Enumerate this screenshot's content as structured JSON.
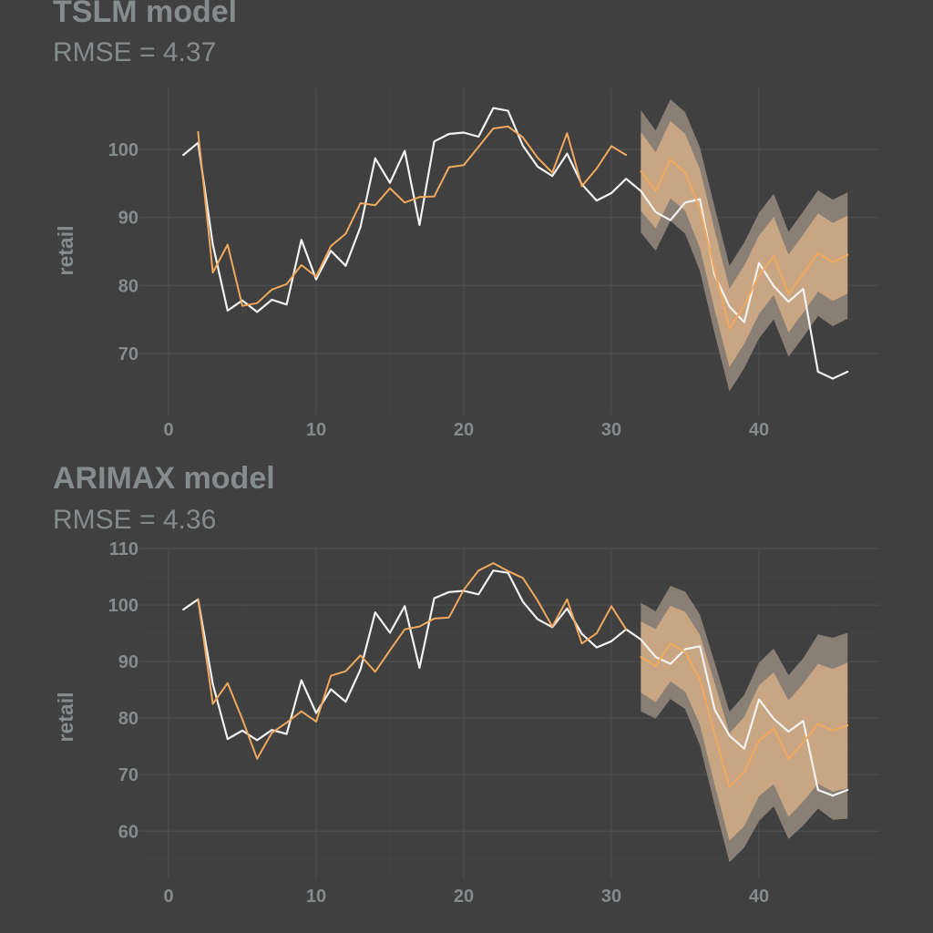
{
  "colors": {
    "background": "#404040",
    "text": "#868b8e",
    "grid": "#4a4c4d",
    "actual": "#f2f2f2",
    "forecast": "#f0a95d",
    "band80": "#c9a683",
    "band95": "#8a7f75"
  },
  "chart_data": [
    {
      "type": "line",
      "title": "TSLM model",
      "subtitle": "RMSE = 4.37",
      "xlabel": "",
      "ylabel": "retail",
      "xlim": [
        0,
        48
      ],
      "ylim": [
        61,
        109
      ],
      "x_ticks": [
        0,
        10,
        20,
        30,
        40
      ],
      "y_ticks": [
        70,
        80,
        90,
        100
      ],
      "grid": true,
      "legend": "none",
      "series": [
        {
          "role": "actual",
          "x": [
            1,
            2,
            3,
            4,
            5,
            6,
            7,
            8,
            9,
            10,
            11,
            12,
            13,
            14,
            15,
            16,
            17,
            18,
            19,
            20,
            21,
            22,
            23,
            24,
            25,
            26,
            27,
            28,
            29,
            30,
            31,
            32,
            33,
            34,
            35,
            36,
            37,
            38,
            39,
            40,
            41,
            42,
            43,
            44,
            45,
            46
          ],
          "y": [
            99.2,
            101.0,
            86.0,
            76.3,
            77.8,
            76.1,
            77.9,
            77.2,
            86.7,
            80.9,
            85.1,
            82.9,
            88.6,
            98.7,
            95.1,
            99.8,
            88.9,
            101.2,
            102.3,
            102.5,
            101.9,
            106.1,
            105.7,
            100.6,
            97.5,
            96.1,
            99.4,
            94.9,
            92.5,
            93.6,
            95.7,
            93.9,
            90.8,
            89.6,
            92.2,
            92.7,
            81.5,
            76.9,
            74.6,
            83.3,
            79.9,
            77.6,
            79.5,
            67.3,
            66.3,
            67.3
          ]
        },
        {
          "role": "fitted",
          "x": [
            2,
            3,
            4,
            5,
            6,
            7,
            8,
            9,
            10,
            11,
            12,
            13,
            14,
            15,
            16,
            17,
            18,
            19,
            20,
            21,
            22,
            23,
            24,
            25,
            26,
            27,
            28,
            29,
            30,
            31
          ],
          "y": [
            102.6,
            81.9,
            86.0,
            77.0,
            77.4,
            79.4,
            80.2,
            83.0,
            81.3,
            85.8,
            87.6,
            92.1,
            91.8,
            94.3,
            92.2,
            93.0,
            93.1,
            97.4,
            97.7,
            100.4,
            103.1,
            103.4,
            101.8,
            98.8,
            96.6,
            102.4,
            94.6,
            97.2,
            100.5,
            99.2
          ]
        },
        {
          "role": "forecast",
          "x": [
            32,
            33,
            34,
            35,
            36,
            37,
            38,
            39,
            40,
            41,
            42,
            43,
            44,
            45,
            46
          ],
          "y": [
            96.8,
            93.9,
            98.5,
            96.6,
            91.3,
            82.2,
            73.7,
            77.1,
            81.5,
            84.3,
            78.8,
            81.7,
            84.8,
            83.4,
            84.5
          ]
        }
      ],
      "intervals": {
        "x": [
          32,
          33,
          34,
          35,
          36,
          37,
          38,
          39,
          40,
          41,
          42,
          43,
          44,
          45,
          46
        ],
        "lo80": [
          91.0,
          88.4,
          92.8,
          91.0,
          85.5,
          76.4,
          68.0,
          71.4,
          75.8,
          78.6,
          73.1,
          76.0,
          79.1,
          77.7,
          78.8
        ],
        "hi80": [
          102.6,
          99.6,
          104.2,
          102.3,
          97.1,
          88.1,
          79.5,
          82.9,
          87.3,
          90.1,
          84.5,
          87.5,
          90.6,
          89.2,
          90.3
        ],
        "lo95": [
          87.8,
          85.1,
          89.5,
          87.6,
          82.1,
          72.9,
          64.4,
          67.8,
          72.2,
          75.0,
          69.5,
          72.4,
          75.5,
          74.0,
          75.1
        ],
        "hi95": [
          105.8,
          102.8,
          107.4,
          105.5,
          100.3,
          91.5,
          82.9,
          86.3,
          90.7,
          93.5,
          87.9,
          90.9,
          94.0,
          92.6,
          93.7
        ]
      }
    },
    {
      "type": "line",
      "title": "ARIMAX model",
      "subtitle": "RMSE = 4.36",
      "xlabel": "",
      "ylabel": "retail",
      "xlim": [
        0,
        48
      ],
      "ylim": [
        51.5,
        110
      ],
      "x_ticks": [
        0,
        10,
        20,
        30,
        40
      ],
      "y_ticks": [
        60,
        70,
        80,
        90,
        100,
        110
      ],
      "grid": true,
      "legend": "none",
      "series": [
        {
          "role": "actual",
          "x": [
            1,
            2,
            3,
            4,
            5,
            6,
            7,
            8,
            9,
            10,
            11,
            12,
            13,
            14,
            15,
            16,
            17,
            18,
            19,
            20,
            21,
            22,
            23,
            24,
            25,
            26,
            27,
            28,
            29,
            30,
            31,
            32,
            33,
            34,
            35,
            36,
            37,
            38,
            39,
            40,
            41,
            42,
            43,
            44,
            45,
            46
          ],
          "y": [
            99.2,
            101.0,
            86.0,
            76.3,
            77.8,
            76.1,
            77.9,
            77.2,
            86.7,
            80.9,
            85.1,
            82.9,
            88.6,
            98.7,
            95.1,
            99.8,
            88.9,
            101.2,
            102.3,
            102.5,
            101.9,
            106.1,
            105.7,
            100.6,
            97.5,
            96.1,
            99.4,
            94.9,
            92.5,
            93.6,
            95.7,
            93.9,
            90.8,
            89.6,
            92.2,
            92.7,
            81.5,
            76.9,
            74.6,
            83.3,
            79.9,
            77.6,
            79.5,
            67.3,
            66.3,
            67.3
          ]
        },
        {
          "role": "fitted",
          "x": [
            2,
            3,
            4,
            5,
            6,
            7,
            8,
            9,
            10,
            11,
            12,
            13,
            14,
            15,
            16,
            17,
            18,
            19,
            20,
            21,
            22,
            23,
            24,
            25,
            26,
            27,
            28,
            29,
            30,
            31
          ],
          "y": [
            101.0,
            82.5,
            86.2,
            79.8,
            72.8,
            77.4,
            79.2,
            81.2,
            79.4,
            87.5,
            88.3,
            91.1,
            88.2,
            92.0,
            95.7,
            96.2,
            97.6,
            97.8,
            102.7,
            106.1,
            107.4,
            106.0,
            104.8,
            100.8,
            96.2,
            101.0,
            93.2,
            95.0,
            99.8,
            95.7
          ]
        },
        {
          "role": "forecast",
          "x": [
            32,
            33,
            34,
            35,
            36,
            37,
            38,
            39,
            40,
            41,
            42,
            43,
            44,
            45,
            46
          ],
          "y": [
            90.8,
            89.2,
            93.2,
            91.7,
            86.8,
            77.2,
            67.8,
            70.5,
            76.0,
            78.2,
            72.8,
            75.7,
            79.0,
            77.8,
            78.7
          ]
        }
      ],
      "intervals": {
        "x": [
          32,
          33,
          34,
          35,
          36,
          37,
          38,
          39,
          40,
          41,
          42,
          43,
          44,
          45,
          46
        ],
        "lo80": [
          84.5,
          82.8,
          86.5,
          84.7,
          78.8,
          68.2,
          58.3,
          60.9,
          66.2,
          68.3,
          62.5,
          65.3,
          68.4,
          67.0,
          67.6
        ],
        "hi80": [
          97.1,
          95.7,
          99.9,
          98.8,
          94.7,
          86.2,
          77.3,
          80.2,
          85.8,
          88.1,
          83.1,
          86.1,
          89.6,
          88.7,
          89.8
        ],
        "lo95": [
          81.2,
          79.9,
          83.4,
          81.6,
          75.2,
          64.6,
          54.5,
          57.1,
          61.8,
          64.4,
          58.6,
          61.0,
          64.0,
          62.0,
          62.2
        ],
        "hi95": [
          100.4,
          98.9,
          103.4,
          102.4,
          98.3,
          89.8,
          81.1,
          84.1,
          89.8,
          92.3,
          87.6,
          90.6,
          94.8,
          94.2,
          95.1
        ]
      }
    }
  ]
}
